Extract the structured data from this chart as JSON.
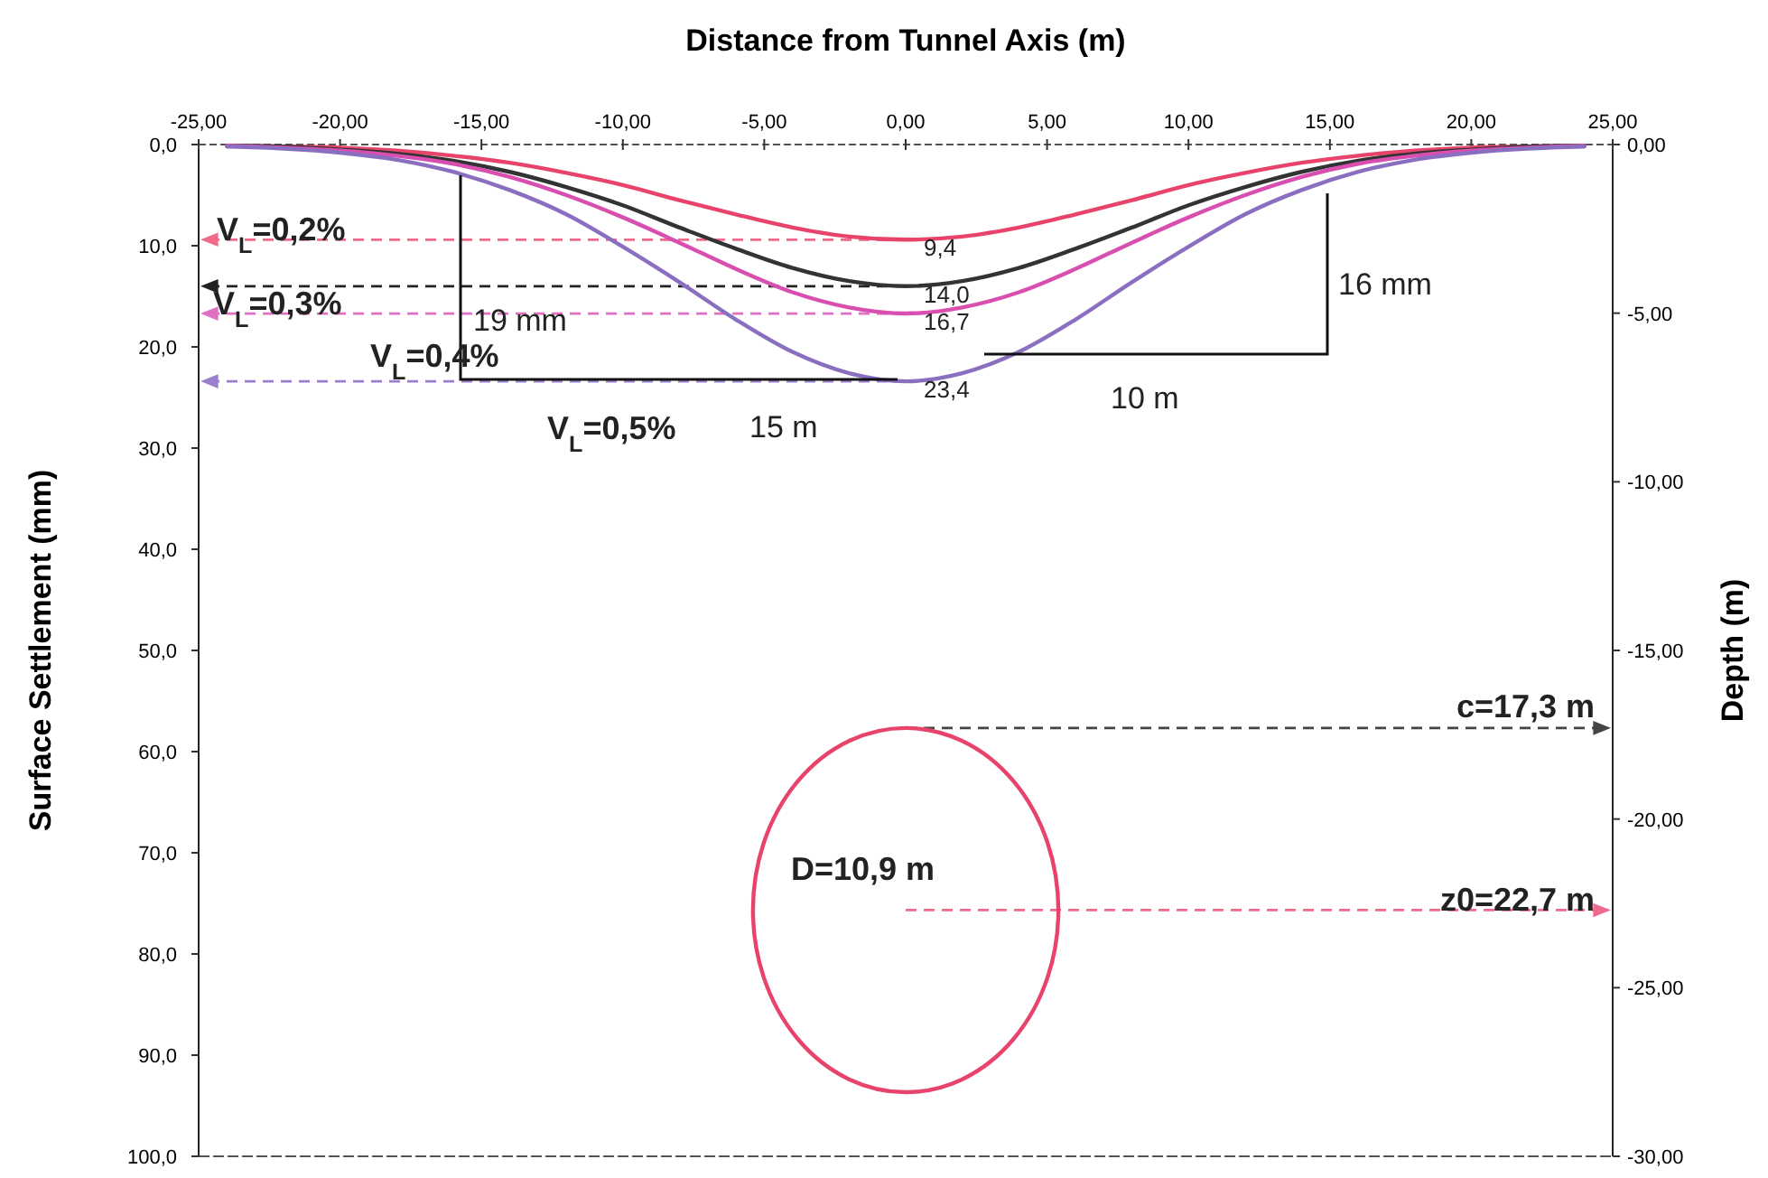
{
  "chart_data": {
    "type": "line",
    "xlabel": "Distance from Tunnel Axis (m)",
    "ylabel": "Surface Settlement (mm)",
    "y2label": "Depth (m)",
    "x": [
      -24,
      -22,
      -20,
      -18,
      -16,
      -14,
      -12,
      -10,
      -8,
      -6,
      -4,
      -2,
      0,
      2,
      4,
      6,
      8,
      10,
      12,
      14,
      16,
      18,
      20,
      22,
      24
    ],
    "series": [
      {
        "color": "#e8436a",
        "values": [
          0.1,
          0.2,
          0.3,
          0.6,
          1.1,
          1.8,
          2.8,
          4.0,
          5.5,
          6.9,
          8.2,
          9.1,
          9.4,
          9.1,
          8.2,
          6.9,
          5.5,
          4.0,
          2.8,
          1.8,
          1.1,
          0.6,
          0.3,
          0.2,
          0.1
        ],
        "value_labels": [
          null,
          null,
          null,
          null,
          null,
          null,
          null,
          null,
          null,
          null,
          null,
          null,
          "9,4",
          null,
          null,
          null,
          null,
          null,
          null,
          null,
          null,
          null,
          null,
          null,
          null
        ]
      },
      {
        "color": "#333333",
        "values": [
          0.1,
          0.2,
          0.5,
          0.9,
          1.6,
          2.7,
          4.2,
          6.0,
          8.2,
          10.3,
          12.2,
          13.5,
          14.0,
          13.5,
          12.2,
          10.3,
          8.2,
          6.0,
          4.2,
          2.7,
          1.6,
          0.9,
          0.5,
          0.2,
          0.1
        ],
        "value_labels": [
          null,
          null,
          null,
          null,
          null,
          null,
          null,
          null,
          null,
          null,
          null,
          null,
          "14,0",
          null,
          null,
          null,
          null,
          null,
          null,
          null,
          null,
          null,
          null,
          null,
          null
        ]
      },
      {
        "color": "#d94fb0",
        "values": [
          0.1,
          0.3,
          0.6,
          1.1,
          1.9,
          3.2,
          5.0,
          7.2,
          9.7,
          12.3,
          14.6,
          16.1,
          16.7,
          16.1,
          14.6,
          12.3,
          9.7,
          7.2,
          5.0,
          3.2,
          1.9,
          1.1,
          0.6,
          0.3,
          0.1
        ],
        "value_labels": [
          null,
          null,
          null,
          null,
          null,
          null,
          null,
          null,
          null,
          null,
          null,
          null,
          "16,7",
          null,
          null,
          null,
          null,
          null,
          null,
          null,
          null,
          null,
          null,
          null,
          null
        ]
      },
      {
        "color": "#8a6fc0",
        "values": [
          0.2,
          0.4,
          0.8,
          1.5,
          2.7,
          4.5,
          6.9,
          10.1,
          13.6,
          17.3,
          20.5,
          22.6,
          23.4,
          22.6,
          20.5,
          17.3,
          13.6,
          10.1,
          6.9,
          4.5,
          2.7,
          1.5,
          0.8,
          0.4,
          0.2
        ],
        "value_labels": [
          null,
          null,
          null,
          null,
          null,
          null,
          null,
          null,
          null,
          null,
          null,
          null,
          "23,4",
          null,
          null,
          null,
          null,
          null,
          null,
          null,
          null,
          null,
          null,
          null,
          null
        ]
      }
    ],
    "xlim": [
      -25,
      25
    ],
    "xticks": [
      {
        "value": -25,
        "label": "-25,00"
      },
      {
        "value": -20,
        "label": "-20,00"
      },
      {
        "value": -15,
        "label": "-15,00"
      },
      {
        "value": -10,
        "label": "-10,00"
      },
      {
        "value": -5,
        "label": "-5,00"
      },
      {
        "value": 0,
        "label": "0,00"
      },
      {
        "value": 5,
        "label": "5,00"
      },
      {
        "value": 10,
        "label": "10,00"
      },
      {
        "value": 15,
        "label": "15,00"
      },
      {
        "value": 20,
        "label": "20,00"
      },
      {
        "value": 25,
        "label": "25,00"
      }
    ],
    "ylim": [
      100,
      0
    ],
    "yticks": [
      {
        "value": 0,
        "label": "0,0"
      },
      {
        "value": 10,
        "label": "10,0"
      },
      {
        "value": 20,
        "label": "20,0"
      },
      {
        "value": 30,
        "label": "30,0"
      },
      {
        "value": 40,
        "label": "40,0"
      },
      {
        "value": 50,
        "label": "50,0"
      },
      {
        "value": 60,
        "label": "60,0"
      },
      {
        "value": 70,
        "label": "70,0"
      },
      {
        "value": 80,
        "label": "80,0"
      },
      {
        "value": 90,
        "label": "90,0"
      },
      {
        "value": 100,
        "label": "100,0"
      }
    ],
    "y2lim": [
      -30,
      0
    ],
    "y2ticks": [
      {
        "value": 0,
        "label": "0,00"
      },
      {
        "value": -5,
        "label": "-5,00"
      },
      {
        "value": -10,
        "label": "-10,00"
      },
      {
        "value": -15,
        "label": "-15,00"
      },
      {
        "value": -20,
        "label": "-20,00"
      },
      {
        "value": -25,
        "label": "-25,00"
      },
      {
        "value": -30,
        "label": "-30,00"
      }
    ],
    "ref_lines": [
      {
        "axis": "y",
        "value": 9.4,
        "color": "#f06a8c",
        "line_style": "dashed"
      },
      {
        "axis": "y",
        "value": 14.0,
        "color": "#222222",
        "line_style": "dashed"
      },
      {
        "axis": "y",
        "value": 16.7,
        "color": "#e070c0",
        "line_style": "dashed"
      },
      {
        "axis": "y",
        "value": 23.4,
        "color": "#9a80cc",
        "line_style": "dashed"
      },
      {
        "axis": "y2",
        "value": -17.3,
        "color": "#444444",
        "line_style": "dashed"
      },
      {
        "axis": "y2",
        "value": -22.7,
        "color": "#f06a8c",
        "line_style": "dashed"
      }
    ],
    "annotations": [
      "V$_{L}$=0,2%",
      "V$_{L}$=0,3%",
      "V$_{L}$=0,4%",
      "V$_{L}$=0,5%",
      "19 mm",
      "15 m",
      "16 mm",
      "10 m",
      "D=10,9 m",
      "c=17,3 m",
      "z0=22,7 m"
    ],
    "grid": false,
    "marker": "none",
    "line_style": "solid"
  }
}
